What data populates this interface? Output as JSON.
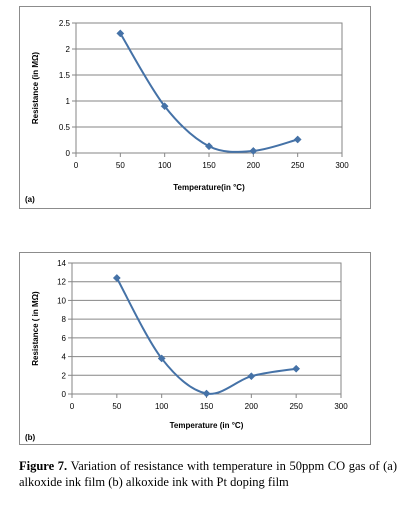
{
  "chart_data": [
    {
      "type": "line",
      "panel_label": "(a)",
      "xlabel": "Temperature(in °C)",
      "ylabel": "Resistance (in MΩ)",
      "xlim": [
        0,
        300
      ],
      "ylim": [
        0,
        2.5
      ],
      "xticks": [
        0,
        50,
        100,
        150,
        200,
        250,
        300
      ],
      "yticks": [
        0,
        0.5,
        1,
        1.5,
        2,
        2.5
      ],
      "ytick_labels": [
        "0",
        "0.5",
        "1",
        "1.5",
        "2",
        "2.5"
      ],
      "grid": "horizontal",
      "smooth": true,
      "series": [
        {
          "x": [
            50,
            100,
            150,
            200,
            250
          ],
          "y": [
            2.3,
            0.9,
            0.13,
            0.04,
            0.26
          ]
        }
      ],
      "color": "#4572a7"
    },
    {
      "type": "line",
      "panel_label": "(b)",
      "xlabel": "Temperature (in °C)",
      "ylabel": "Resistance  ( in MΩ)",
      "xlim": [
        0,
        300
      ],
      "ylim": [
        0,
        14
      ],
      "xticks": [
        0,
        50,
        100,
        150,
        200,
        250,
        300
      ],
      "yticks": [
        0,
        2,
        4,
        6,
        8,
        10,
        12,
        14
      ],
      "ytick_labels": [
        "0",
        "2",
        "4",
        "6",
        "8",
        "10",
        "12",
        "14"
      ],
      "grid": "horizontal",
      "smooth": true,
      "series": [
        {
          "x": [
            50,
            100,
            150,
            200,
            250
          ],
          "y": [
            12.4,
            3.8,
            0.05,
            1.9,
            2.7
          ]
        }
      ],
      "color": "#4572a7"
    }
  ],
  "caption": {
    "label": "Figure 7.",
    "text": " Variation of resistance with temperature in 50ppm CO gas of (a) alkoxide ink film (b) alkoxide ink with Pt doping film"
  }
}
